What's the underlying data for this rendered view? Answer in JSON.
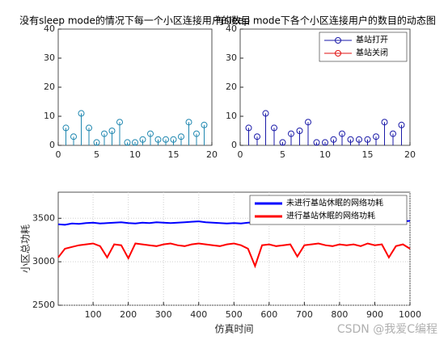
{
  "chart_data": [
    {
      "type": "stem",
      "title": "没有sleep mode的情况下每一个小区连接用户的数目",
      "x": [
        1,
        2,
        3,
        4,
        5,
        6,
        7,
        8,
        9,
        10,
        11,
        12,
        13,
        14,
        15,
        16,
        17,
        18,
        19
      ],
      "series": [
        {
          "color": "#1f87b0",
          "values": [
            6,
            3,
            11,
            6,
            1,
            4,
            5,
            8,
            1,
            1,
            2,
            4,
            2,
            2,
            2,
            3,
            8,
            4,
            7
          ]
        }
      ],
      "xlim": [
        0,
        20
      ],
      "xticks": [
        0,
        5,
        10,
        15,
        20
      ],
      "ylim": [
        0,
        40
      ],
      "yticks": [
        0,
        10,
        20,
        30,
        40
      ]
    },
    {
      "type": "stem",
      "title": "有sleep mode下各个小区连接用户的数目的动态图",
      "x": [
        1,
        2,
        3,
        4,
        5,
        6,
        7,
        8,
        9,
        10,
        11,
        12,
        13,
        14,
        15,
        16,
        17,
        18,
        19
      ],
      "series": [
        {
          "name": "基站打开",
          "color": "#1a1aa8",
          "values": [
            6,
            3,
            11,
            6,
            1,
            4,
            5,
            8,
            1,
            1,
            2,
            4,
            2,
            2,
            2,
            3,
            8,
            4,
            7
          ]
        },
        {
          "name": "基站关闭",
          "color": "#e01010",
          "values": [
            null,
            null,
            null,
            null,
            null,
            null,
            null,
            null,
            null,
            null,
            null,
            null,
            null,
            null,
            null,
            null,
            null,
            null,
            null
          ]
        }
      ],
      "xlim": [
        0,
        20
      ],
      "xticks": [
        0,
        5,
        10,
        15,
        20
      ],
      "ylim": [
        0,
        40
      ],
      "yticks": [
        0,
        10,
        20,
        30,
        40
      ],
      "legend": "upper-right"
    },
    {
      "type": "line",
      "xlabel": "仿真时间",
      "ylabel": "小区总功耗",
      "x": [
        1,
        20,
        40,
        60,
        80,
        100,
        120,
        140,
        160,
        180,
        200,
        220,
        240,
        260,
        280,
        300,
        320,
        340,
        360,
        380,
        400,
        420,
        440,
        460,
        480,
        500,
        520,
        540,
        560,
        580,
        600,
        620,
        640,
        660,
        680,
        700,
        720,
        740,
        760,
        780,
        800,
        820,
        840,
        860,
        880,
        900,
        920,
        940,
        960,
        980,
        1000
      ],
      "series": [
        {
          "name": "未进行基站休眠的网络功耗",
          "color": "#0000ff",
          "values": [
            3430,
            3425,
            3440,
            3435,
            3445,
            3450,
            3440,
            3445,
            3450,
            3455,
            3445,
            3440,
            3450,
            3445,
            3455,
            3450,
            3445,
            3450,
            3455,
            3460,
            3465,
            3455,
            3450,
            3445,
            3440,
            3445,
            3440,
            3450,
            3455,
            3450,
            3460,
            3455,
            3465,
            3460,
            3455,
            3450,
            3460,
            3455,
            3450,
            3460,
            3455,
            3450,
            3445,
            3455,
            3450,
            3460,
            3455,
            3450,
            3460,
            3465,
            3470
          ]
        },
        {
          "name": "进行基站休眠的网络功耗",
          "color": "#ff0000",
          "values": [
            3050,
            3150,
            3170,
            3190,
            3200,
            3210,
            3180,
            3050,
            3200,
            3190,
            3040,
            3210,
            3200,
            3190,
            3180,
            3200,
            3210,
            3190,
            3180,
            3200,
            3210,
            3200,
            3190,
            3180,
            3200,
            3210,
            3190,
            3150,
            2950,
            3190,
            3200,
            3180,
            3190,
            3200,
            3060,
            3190,
            3200,
            3210,
            3190,
            3180,
            3200,
            3190,
            3200,
            3180,
            3210,
            3190,
            3200,
            3050,
            3180,
            3200,
            3150
          ]
        }
      ],
      "xlim": [
        1,
        1000
      ],
      "xticks": [
        100,
        200,
        300,
        400,
        500,
        600,
        700,
        800,
        900,
        1000
      ],
      "ylim": [
        2500,
        3800
      ],
      "yticks": [
        2500,
        3000,
        3500
      ],
      "grid": true,
      "legend": "upper-right"
    }
  ],
  "watermark": "CSDN @我爱C编程"
}
